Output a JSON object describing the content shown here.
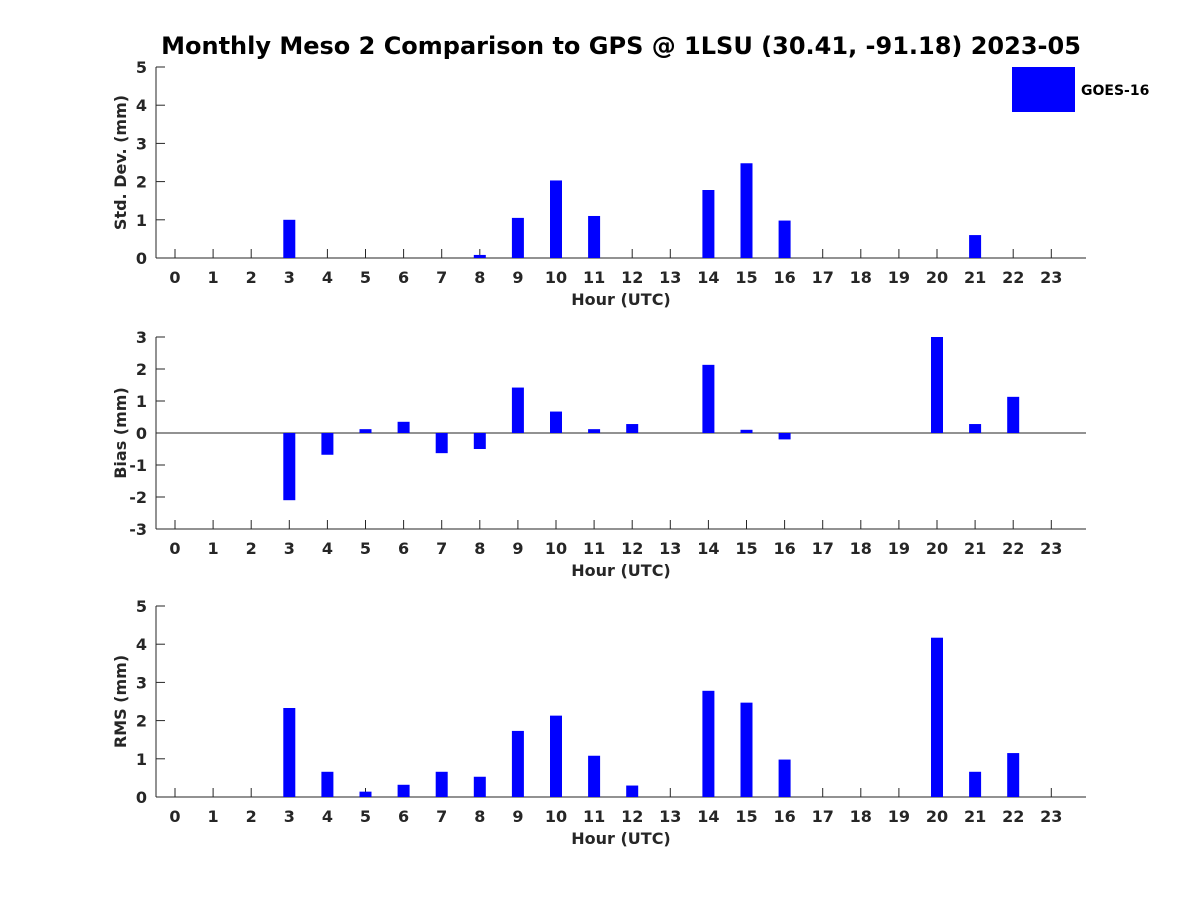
{
  "chart_data": {
    "title": "Monthly Meso 2 Comparison to GPS @ 1LSU (30.41, -91.18) 2023-05",
    "legend": {
      "label": "GOES-16",
      "color": "#0000ff",
      "placement": "top-right"
    },
    "panels": [
      {
        "type": "bar",
        "ylabel": "Std. Dev. (mm)",
        "xlabel": "Hour (UTC)",
        "ylim": [
          0,
          5
        ],
        "yticks": [
          "0",
          "1",
          "2",
          "3",
          "4",
          "5"
        ],
        "categories": [
          "0",
          "1",
          "2",
          "3",
          "4",
          "5",
          "6",
          "7",
          "8",
          "9",
          "10",
          "11",
          "12",
          "13",
          "14",
          "15",
          "16",
          "17",
          "18",
          "19",
          "20",
          "21",
          "22",
          "23"
        ],
        "values": [
          0,
          0,
          0,
          1.0,
          0,
          0,
          0,
          0,
          0.08,
          1.05,
          2.03,
          1.1,
          0,
          0,
          1.78,
          2.48,
          0.98,
          0,
          0,
          0,
          0,
          0.6,
          0,
          0
        ]
      },
      {
        "type": "bar",
        "ylabel": "Bias (mm)",
        "xlabel": "Hour (UTC)",
        "ylim": [
          -3,
          3
        ],
        "yticks": [
          "-3",
          "-2",
          "-1",
          "0",
          "1",
          "2",
          "3"
        ],
        "categories": [
          "0",
          "1",
          "2",
          "3",
          "4",
          "5",
          "6",
          "7",
          "8",
          "9",
          "10",
          "11",
          "12",
          "13",
          "14",
          "15",
          "16",
          "17",
          "18",
          "19",
          "20",
          "21",
          "22",
          "23"
        ],
        "values": [
          0,
          0,
          0,
          -2.1,
          -0.68,
          0.12,
          0.35,
          -0.63,
          -0.5,
          1.42,
          0.67,
          0.12,
          0.28,
          0,
          2.13,
          0.1,
          -0.2,
          0,
          0,
          0,
          3.0,
          0.28,
          1.13,
          0
        ]
      },
      {
        "type": "bar",
        "ylabel": "RMS (mm)",
        "xlabel": "Hour (UTC)",
        "ylim": [
          0,
          5
        ],
        "yticks": [
          "0",
          "1",
          "2",
          "3",
          "4",
          "5"
        ],
        "categories": [
          "0",
          "1",
          "2",
          "3",
          "4",
          "5",
          "6",
          "7",
          "8",
          "9",
          "10",
          "11",
          "12",
          "13",
          "14",
          "15",
          "16",
          "17",
          "18",
          "19",
          "20",
          "21",
          "22",
          "23"
        ],
        "values": [
          0,
          0,
          0,
          2.33,
          0.66,
          0.14,
          0.32,
          0.66,
          0.53,
          1.73,
          2.13,
          1.08,
          0.3,
          0,
          2.78,
          2.47,
          0.98,
          0,
          0,
          0,
          4.17,
          0.66,
          1.15,
          0
        ]
      }
    ]
  }
}
